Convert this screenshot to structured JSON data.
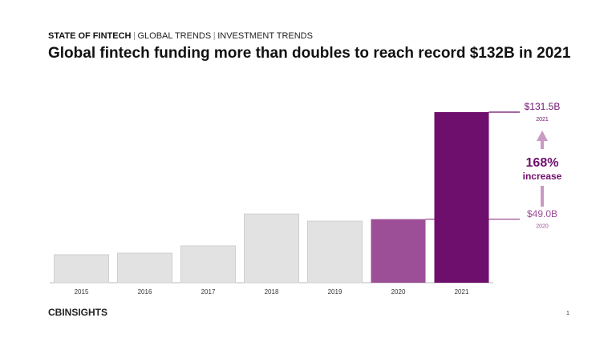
{
  "chart_data": {
    "type": "bar",
    "breadcrumb": [
      "STATE OF FINTECH",
      "GLOBAL TRENDS",
      "INVESTMENT TRENDS"
    ],
    "title": "Global fintech funding more than doubles to reach record $132B in 2021",
    "categories": [
      "2015",
      "2016",
      "2017",
      "2018",
      "2019",
      "2020",
      "2021"
    ],
    "values": [
      21.6,
      22.8,
      28.4,
      53.0,
      47.5,
      49.0,
      131.5
    ],
    "value_labels": [
      null,
      null,
      null,
      null,
      null,
      "$49.0B",
      "$131.5B"
    ],
    "colors": [
      "#e2e2e2",
      "#e2e2e2",
      "#e2e2e2",
      "#e2e2e2",
      "#e2e2e2",
      "#9c4f97",
      "#6f0f6d"
    ],
    "annotation": {
      "value": "168%",
      "text": "increase"
    },
    "footer": {
      "logo": "CBINSIGHTS",
      "page": "1"
    }
  }
}
